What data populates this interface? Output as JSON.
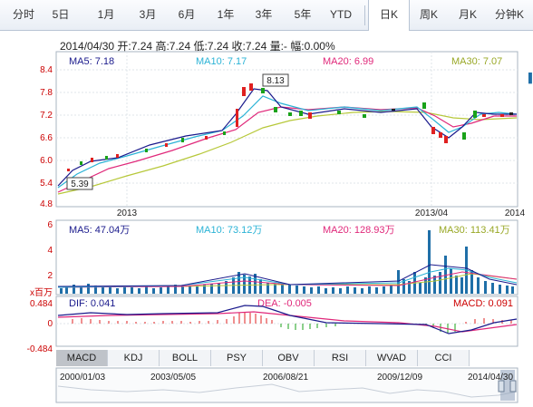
{
  "tabs": {
    "period": [
      "分时",
      "5日",
      "1月",
      "3月",
      "6月",
      "1年",
      "3年",
      "5年",
      "YTD"
    ],
    "kline": [
      "日K",
      "周K",
      "月K",
      "分钟K"
    ],
    "active": "日K"
  },
  "quote": {
    "date": "2014/04/30",
    "open": "开:7.24",
    "high": "高:7.24",
    "low": "低:7.24",
    "close": "收:7.24",
    "volume": "量:-",
    "change": "幅:0.00%"
  },
  "price_panel": {
    "ma5": "MA5: 7.18",
    "ma10": "MA10: 7.17",
    "ma20": "MA20: 6.99",
    "ma30": "MA30: 7.07",
    "y_ticks": [
      "8.4",
      "7.8",
      "7.2",
      "6.6",
      "6.0",
      "5.4",
      "4.8"
    ],
    "x_ticks": [
      "2013",
      "2013/04",
      "2014"
    ],
    "max_label": "8.13",
    "min_label": "5.39",
    "colors": {
      "ma5": "#1a1a8c",
      "ma10": "#2bb3d6",
      "ma20": "#e0287a",
      "ma30": "#b7c83a",
      "up": "#e02020",
      "down": "#19a219",
      "axis": "#cc0000"
    }
  },
  "volume_panel": {
    "ma5": "MA5: 47.04万",
    "ma10": "MA10: 73.12万",
    "ma20": "MA20: 128.93万",
    "ma30": "MA30: 113.41万",
    "y_ticks": [
      "6",
      "4",
      "2"
    ],
    "unit": "x百万"
  },
  "macd_panel": {
    "dif": "DIF: 0.041",
    "dea": "DEA: -0.005",
    "macd": "MACD: 0.091",
    "y_ticks": [
      "0.484",
      "0",
      "-0.484"
    ]
  },
  "indicator_tabs": [
    "MACD",
    "KDJ",
    "BOLL",
    "PSY",
    "OBV",
    "RSI",
    "WVAD",
    "CCI"
  ],
  "indicator_active": "MACD",
  "navigator_dates": [
    "2000/01/03",
    "2003/05/05",
    "2006/08/21",
    "2009/12/09",
    "2014/04/30"
  ]
}
